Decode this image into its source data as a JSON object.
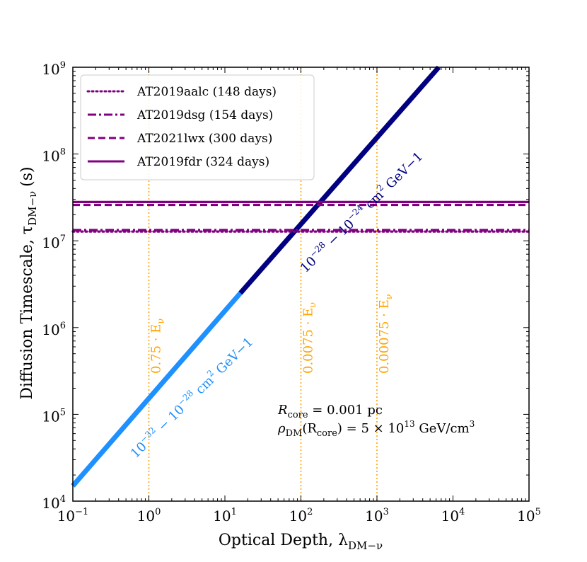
{
  "chart_data": {
    "type": "line",
    "xscale": "log",
    "yscale": "log",
    "xlim": [
      0.1,
      100000
    ],
    "ylim": [
      10000,
      1000000000
    ],
    "xlabel": "Optical Depth, λ",
    "xlabel_sub": "DM−ν",
    "ylabel": "Diffusion Timescale, τ",
    "ylabel_sub": "DM−ν",
    "ylabel_unit": "(s)",
    "x_ticks": [
      {
        "value": 0.1,
        "base": "10",
        "exp": "−1"
      },
      {
        "value": 1,
        "base": "10",
        "exp": "0"
      },
      {
        "value": 10,
        "base": "10",
        "exp": "1"
      },
      {
        "value": 100,
        "base": "10",
        "exp": "2"
      },
      {
        "value": 1000,
        "base": "10",
        "exp": "3"
      },
      {
        "value": 10000,
        "base": "10",
        "exp": "4"
      },
      {
        "value": 100000,
        "base": "10",
        "exp": "5"
      }
    ],
    "y_ticks": [
      {
        "value": 10000,
        "base": "10",
        "exp": "4"
      },
      {
        "value": 100000,
        "base": "10",
        "exp": "5"
      },
      {
        "value": 1000000,
        "base": "10",
        "exp": "6"
      },
      {
        "value": 10000000,
        "base": "10",
        "exp": "7"
      },
      {
        "value": 100000000,
        "base": "10",
        "exp": "8"
      },
      {
        "value": 1000000000,
        "base": "10",
        "exp": "9"
      }
    ],
    "series": [
      {
        "name": "10−32 − 10−28 cm2 GeV−1 segment",
        "color": "#1E90FF",
        "x": [
          0.1,
          16
        ],
        "y": [
          15000,
          2500000
        ]
      },
      {
        "name": "10−28 − 10−24 cm2 GeV−1 segment",
        "color": "#000080",
        "x": [
          16,
          6500
        ],
        "y": [
          2500000,
          1000000000
        ]
      }
    ],
    "legend": [
      {
        "label": "AT2019aalc (148 days)",
        "style": "dotted",
        "color": "#800080",
        "y": 12787200
      },
      {
        "label": "AT2019dsg (154 days)",
        "style": "dashdot",
        "color": "#800080",
        "y": 13305600
      },
      {
        "label": "AT2021lwx (300 days)",
        "style": "dashed",
        "color": "#800080",
        "y": 25920000
      },
      {
        "label": "AT2019fdr (324 days)",
        "style": "solid",
        "color": "#800080",
        "y": 27993600
      }
    ],
    "legend_position": "top-left",
    "vlines": [
      {
        "x": 1,
        "label": "0.75 · E",
        "sub": "ν",
        "color": "#FFA500"
      },
      {
        "x": 100,
        "label": "0.0075 · E",
        "sub": "ν",
        "color": "#FFA500"
      },
      {
        "x": 1000,
        "label": "0.00075 · E",
        "sub": "ν",
        "color": "#FFA500"
      }
    ],
    "segment_labels": [
      {
        "a": "10",
        "a_exp": "−32",
        "mid": " − 10",
        "b_exp": "−28",
        "tail": " cm",
        "c_exp": "2",
        "unit": " GeV",
        "d_exp": "−1",
        "color": "#1E90FF"
      },
      {
        "a": "10",
        "a_exp": "−28",
        "mid": " − 10",
        "b_exp": "−24",
        "tail": " cm",
        "c_exp": "2",
        "unit": " GeV",
        "d_exp": "−1",
        "color": "#000080"
      }
    ],
    "annotations": {
      "line1_pre": "R",
      "line1_sub": "core",
      "line1_post": " = 0.001 pc",
      "line2_pre": "ρ",
      "line2_sub": "DM",
      "line2_mid": "(R",
      "line2_sub2": "core",
      "line2_post": ") = 5 × 10",
      "line2_exp": "13",
      "line2_unit": " GeV/cm",
      "line2_unit_exp": "3"
    }
  }
}
